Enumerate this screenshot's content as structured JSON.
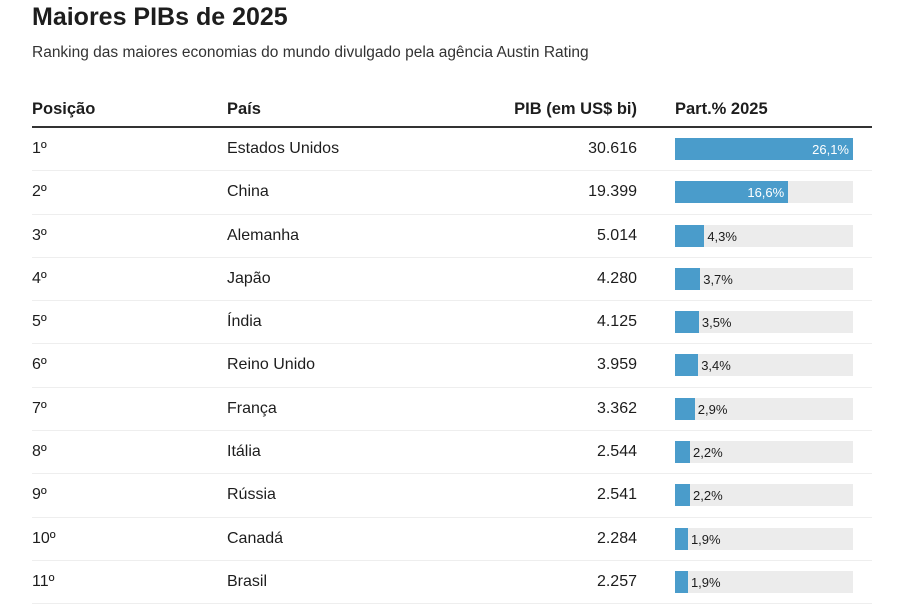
{
  "title": "Maiores PIBs de 2025",
  "subtitle": "Ranking das maiores economias do mundo divulgado pela agência Austin Rating",
  "colors": {
    "bar": "#4a9ccb",
    "track": "#ececec"
  },
  "chart_data": {
    "type": "table",
    "columns": [
      "Posição",
      "País",
      "PIB (em US$ bi)",
      "Part.% 2025"
    ],
    "rows": [
      {
        "pos": "1º",
        "country": "Estados Unidos",
        "gdp": "30.616",
        "share": 26.1,
        "share_label": "26,1%"
      },
      {
        "pos": "2º",
        "country": "China",
        "gdp": "19.399",
        "share": 16.6,
        "share_label": "16,6%"
      },
      {
        "pos": "3º",
        "country": "Alemanha",
        "gdp": "5.014",
        "share": 4.3,
        "share_label": "4,3%"
      },
      {
        "pos": "4º",
        "country": "Japão",
        "gdp": "4.280",
        "share": 3.7,
        "share_label": "3,7%"
      },
      {
        "pos": "5º",
        "country": "Índia",
        "gdp": "4.125",
        "share": 3.5,
        "share_label": "3,5%"
      },
      {
        "pos": "6º",
        "country": "Reino Unido",
        "gdp": "3.959",
        "share": 3.4,
        "share_label": "3,4%"
      },
      {
        "pos": "7º",
        "country": "França",
        "gdp": "3.362",
        "share": 2.9,
        "share_label": "2,9%"
      },
      {
        "pos": "8º",
        "country": "Itália",
        "gdp": "2.544",
        "share": 2.2,
        "share_label": "2,2%"
      },
      {
        "pos": "9º",
        "country": "Rússia",
        "gdp": "2.541",
        "share": 2.2,
        "share_label": "2,2%"
      },
      {
        "pos": "10º",
        "country": "Canadá",
        "gdp": "2.284",
        "share": 1.9,
        "share_label": "1,9%"
      },
      {
        "pos": "11º",
        "country": "Brasil",
        "gdp": "2.257",
        "share": 1.9,
        "share_label": "1,9%"
      }
    ]
  }
}
